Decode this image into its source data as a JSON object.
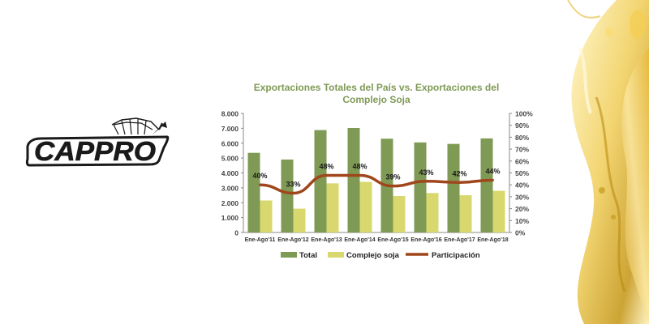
{
  "brand": {
    "name": "CAPPRO"
  },
  "chart_data": {
    "type": "bar",
    "title_lines": [
      "Exportaciones Totales del País vs. Exportaciones del",
      "Complejo Soja"
    ],
    "categories": [
      "Ene-Ago'11",
      "Ene-Ago'12",
      "Ene-Ago'13",
      "Ene-Ago'14",
      "Ene-Ago'15",
      "Ene-Ago'16",
      "Ene-Ago'17",
      "Ene-Ago'18"
    ],
    "series": [
      {
        "name": "Total",
        "type": "bar",
        "axis": "left",
        "color": "#7f9a55",
        "values": [
          5350,
          4900,
          6880,
          7020,
          6300,
          6050,
          5950,
          6320
        ]
      },
      {
        "name": "Complejo soja",
        "type": "bar",
        "axis": "left",
        "color": "#d9d86e",
        "values": [
          2150,
          1600,
          3300,
          3400,
          2450,
          2650,
          2500,
          2800
        ]
      },
      {
        "name": "Participación",
        "type": "line",
        "axis": "right",
        "color": "#a0461c",
        "values": [
          40,
          33,
          48,
          48,
          39,
          43,
          42,
          44
        ]
      }
    ],
    "data_labels": [
      "40%",
      "33%",
      "48%",
      "48%",
      "39%",
      "43%",
      "42%",
      "44%"
    ],
    "ylim_left": [
      0,
      8000
    ],
    "yticks_left": [
      "0",
      "1.000",
      "2.000",
      "3.000",
      "4.000",
      "5.000",
      "6.000",
      "7.000",
      "8.000"
    ],
    "ylim_right": [
      0,
      100
    ],
    "yticks_right": [
      "0%",
      "10%",
      "20%",
      "30%",
      "40%",
      "50%",
      "60%",
      "70%",
      "80%",
      "90%",
      "100%"
    ],
    "grid": false,
    "legend_position": "bottom",
    "legend": [
      "Total",
      "Complejo soja",
      "Participación"
    ]
  },
  "colors": {
    "title": "#7f9a55",
    "axis_text": "#444444",
    "line": "#a0461c"
  }
}
